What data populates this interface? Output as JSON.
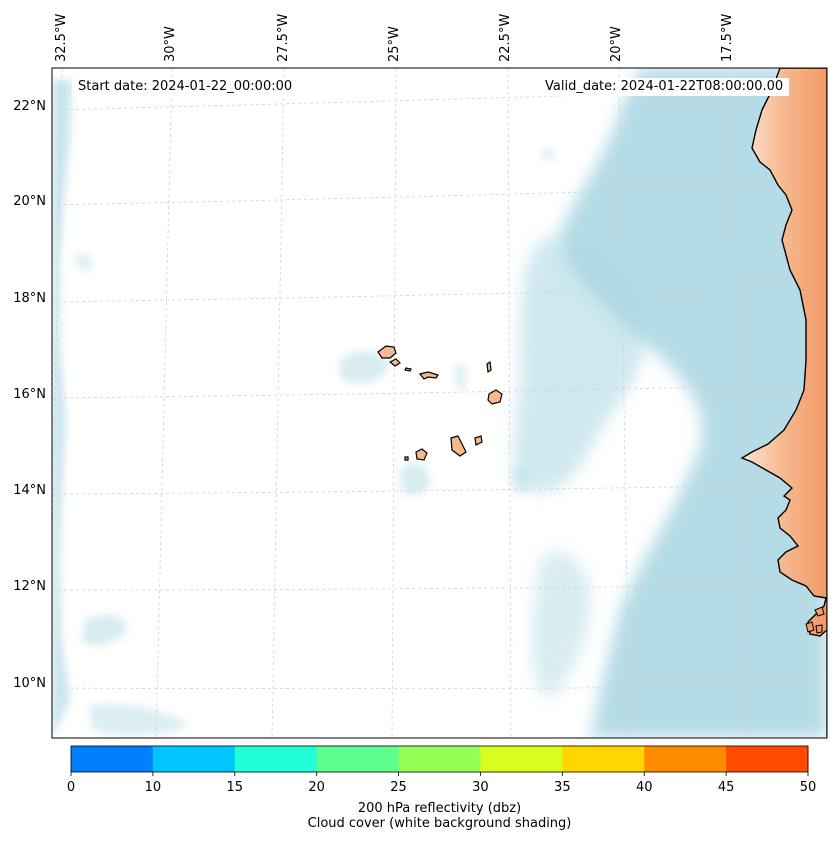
{
  "map": {
    "start_date": "Start date: 2024-01-22_00:00:00",
    "valid_date": "Valid_date: 2024-01-22T08:00:00.00",
    "longitude_labels": [
      "32.5°W",
      "30°W",
      "27.5°W",
      "25°W",
      "22.5°W",
      "20°W",
      "17.5°W"
    ],
    "latitude_labels": [
      "22°N",
      "20°N",
      "18°N",
      "16°N",
      "14°N",
      "12°N",
      "10°N"
    ],
    "land_color": "#f6b88e",
    "cloud_color": "#a8d5e2",
    "coastline_color": "#000000",
    "grid_color": "#cccccc"
  },
  "colorbar": {
    "ticks": [
      "0",
      "10",
      "15",
      "20",
      "25",
      "30",
      "35",
      "40",
      "45",
      "50"
    ],
    "colors": [
      "#0080ff",
      "#00c5ff",
      "#20ffd8",
      "#5dff8e",
      "#96ff55",
      "#d8ff1f",
      "#ffd700",
      "#ff8c00",
      "#ff4a00"
    ],
    "label_line1": "200 hPa reflectivity (dbz)",
    "label_line2": "Cloud cover (white background shading)"
  }
}
